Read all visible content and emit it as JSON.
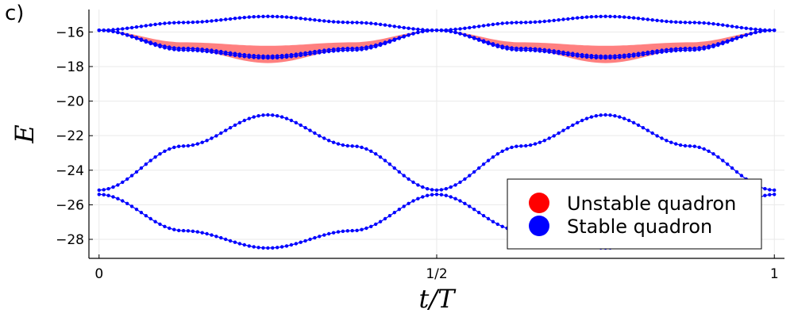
{
  "panel_label": "c)",
  "chart_data": {
    "type": "scatter",
    "xlabel": "t/T",
    "ylabel": "E",
    "xlim": [
      -0.015,
      1.015
    ],
    "ylim": [
      -29.1,
      -14.7
    ],
    "x_ticks": [
      {
        "value": 0,
        "label": "0"
      },
      {
        "value": 0.5,
        "label": "1/2"
      },
      {
        "value": 1,
        "label": "1"
      }
    ],
    "y_ticks": [
      {
        "value": -16,
        "label": "−16"
      },
      {
        "value": -18,
        "label": "−18"
      },
      {
        "value": -20,
        "label": "−20"
      },
      {
        "value": -22,
        "label": "−22"
      },
      {
        "value": -24,
        "label": "−24"
      },
      {
        "value": -26,
        "label": "−26"
      },
      {
        "value": -28,
        "label": "−28"
      }
    ],
    "grid": true,
    "legend_position": "bottom-right",
    "colors": {
      "unstable": "#ff0000",
      "unstable_band": "#ff8080",
      "stable": "#0000ff"
    },
    "series": [
      {
        "name": "Unstable quadron",
        "kind": "band",
        "x": [
          0,
          0.125,
          0.25,
          0.375,
          0.5,
          0.625,
          0.75,
          0.875,
          1
        ],
        "y_upper": [
          -15.9,
          -16.6,
          -16.8,
          -16.6,
          -15.9,
          -16.6,
          -16.8,
          -16.6,
          -15.9
        ],
        "y_lower": [
          -15.9,
          -17.0,
          -17.8,
          -17.0,
          -15.9,
          -17.0,
          -17.8,
          -17.0,
          -15.9
        ]
      },
      {
        "name": "Stable quadron",
        "kind": "curves",
        "curves": [
          {
            "x": [
              0,
              0.125,
              0.25,
              0.375,
              0.5,
              0.625,
              0.75,
              0.875,
              1
            ],
            "y": [
              -15.9,
              -15.45,
              -15.1,
              -15.45,
              -15.9,
              -15.45,
              -15.1,
              -15.45,
              -15.9
            ]
          },
          {
            "x": [
              0,
              0.125,
              0.25,
              0.375,
              0.5,
              0.625,
              0.75,
              0.875,
              1
            ],
            "y": [
              -15.9,
              -16.95,
              -17.4,
              -16.95,
              -15.9,
              -16.95,
              -17.4,
              -16.95,
              -15.9
            ]
          },
          {
            "x": [
              0,
              0.125,
              0.25,
              0.375,
              0.5,
              0.625,
              0.75,
              0.875,
              1
            ],
            "y": [
              -15.9,
              -17.05,
              -17.5,
              -17.05,
              -15.9,
              -17.05,
              -17.5,
              -17.05,
              -15.9
            ]
          },
          {
            "x": [
              0,
              0.125,
              0.25,
              0.375,
              0.5,
              0.625,
              0.75,
              0.875,
              1
            ],
            "y": [
              -25.15,
              -22.6,
              -20.8,
              -22.6,
              -25.15,
              -22.6,
              -20.8,
              -22.6,
              -25.15
            ]
          },
          {
            "x": [
              0,
              0.125,
              0.25,
              0.375,
              0.5,
              0.625,
              0.75,
              0.875,
              1
            ],
            "y": [
              -25.4,
              -27.5,
              -28.5,
              -27.5,
              -25.4,
              -27.5,
              -28.5,
              -27.5,
              -25.4
            ]
          }
        ]
      }
    ]
  }
}
